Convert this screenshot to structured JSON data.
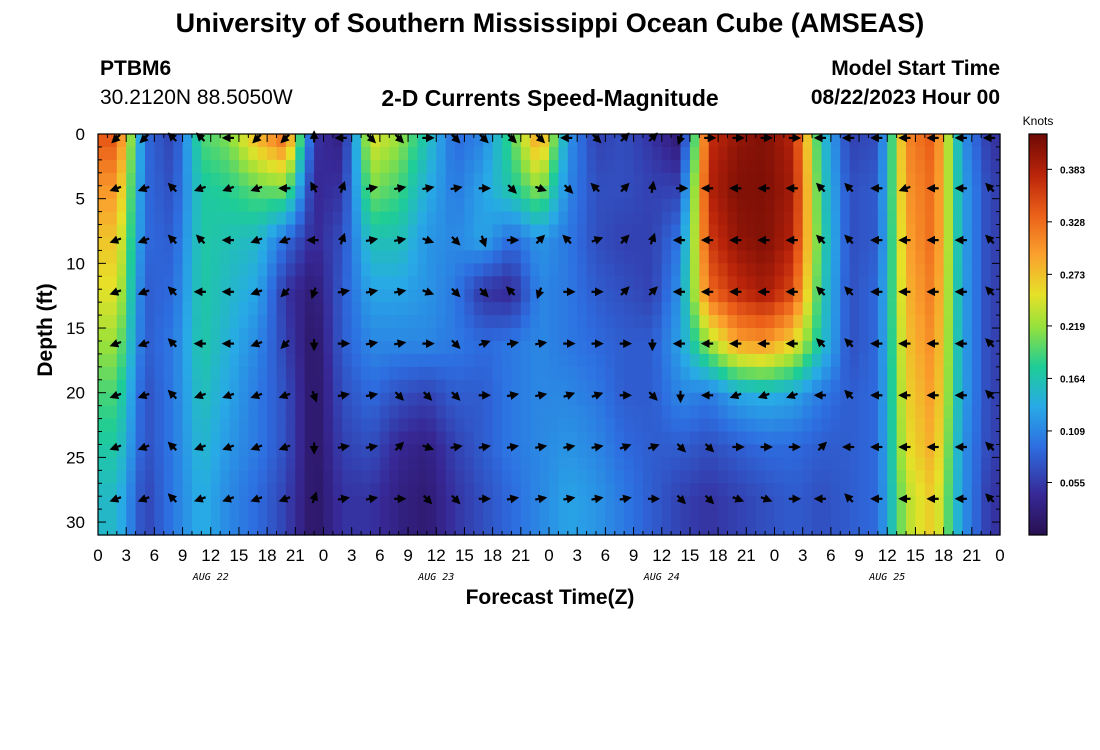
{
  "header": {
    "title": "University of Southern Mississippi Ocean Cube (AMSEAS)",
    "station": "PTBM6",
    "coordinates": "30.2120N  88.5050W",
    "subtitle": "2-D Currents Speed-Magnitude",
    "model_start_label": "Model Start Time",
    "model_start_value": "08/22/2023 Hour 00"
  },
  "footer": {
    "title": "University of Southern Mississippi Ocean Cube (AMSEAS)"
  },
  "chart_data": {
    "type": "heatmap",
    "title": "2-D Currents Speed-Magnitude",
    "xlabel": "Forecast Time(Z)",
    "ylabel": "Depth (ft)",
    "x_unit": "hours since 08/22/2023 00Z",
    "xlim": [
      0,
      96
    ],
    "ylim": [
      31,
      0
    ],
    "x_tick_values": [
      0,
      3,
      6,
      9,
      12,
      15,
      18,
      21,
      24,
      27,
      30,
      33,
      36,
      39,
      42,
      45,
      48,
      51,
      54,
      57,
      60,
      63,
      66,
      69,
      72,
      75,
      78,
      81,
      84,
      87,
      90,
      93,
      96
    ],
    "x_tick_labels": [
      "0",
      "3",
      "6",
      "9",
      "12",
      "15",
      "18",
      "21",
      "0",
      "3",
      "6",
      "9",
      "12",
      "15",
      "18",
      "21",
      "0",
      "3",
      "6",
      "9",
      "12",
      "15",
      "18",
      "21",
      "0",
      "3",
      "6",
      "9",
      "12",
      "15",
      "18",
      "21",
      "0"
    ],
    "y_tick_values": [
      0,
      5,
      10,
      15,
      20,
      25,
      30
    ],
    "y_tick_labels": [
      "0",
      "5",
      "10",
      "15",
      "20",
      "25",
      "30"
    ],
    "date_labels": [
      {
        "label": "AUG 22",
        "hour": 12
      },
      {
        "label": "AUG 23",
        "hour": 36
      },
      {
        "label": "AUG 24",
        "hour": 60
      },
      {
        "label": "AUG 25",
        "hour": 84
      }
    ],
    "colorbar": {
      "label": "Knots",
      "min": 0.0,
      "max": 0.42,
      "tick_values": [
        0.055,
        0.109,
        0.164,
        0.219,
        0.273,
        0.328,
        0.383
      ],
      "tick_labels": [
        "0.055",
        "0.109",
        "0.164",
        "0.219",
        "0.273",
        "0.328",
        "0.383"
      ]
    },
    "vector_times": [
      2,
      5,
      8,
      11,
      14,
      17,
      20,
      23,
      26,
      29,
      32,
      35,
      38,
      41,
      44,
      47,
      50,
      53,
      56,
      59,
      62,
      65,
      68,
      71,
      74,
      77,
      80,
      83,
      86,
      89,
      92,
      95
    ],
    "vector_depths": [
      0.3,
      4.2,
      8.2,
      12.2,
      16.2,
      20.2,
      24.2,
      28.2
    ],
    "speed_grid_note": "Estimated speed (knots) per vector cell; rows = depth levels, columns = vector times",
    "speed": [
      [
        0.34,
        0.09,
        0.06,
        0.19,
        0.21,
        0.28,
        0.33,
        0.05,
        0.03,
        0.25,
        0.22,
        0.16,
        0.09,
        0.11,
        0.19,
        0.3,
        0.12,
        0.06,
        0.07,
        0.05,
        0.02,
        0.37,
        0.4,
        0.41,
        0.38,
        0.16,
        0.06,
        0.07,
        0.31,
        0.34,
        0.12,
        0.05
      ],
      [
        0.3,
        0.09,
        0.07,
        0.17,
        0.18,
        0.2,
        0.21,
        0.04,
        0.05,
        0.21,
        0.19,
        0.14,
        0.1,
        0.13,
        0.17,
        0.22,
        0.11,
        0.07,
        0.07,
        0.06,
        0.06,
        0.38,
        0.41,
        0.41,
        0.39,
        0.17,
        0.07,
        0.08,
        0.3,
        0.33,
        0.13,
        0.06
      ],
      [
        0.27,
        0.09,
        0.08,
        0.17,
        0.16,
        0.15,
        0.09,
        0.04,
        0.07,
        0.16,
        0.16,
        0.12,
        0.11,
        0.13,
        0.09,
        0.12,
        0.1,
        0.07,
        0.06,
        0.06,
        0.1,
        0.36,
        0.4,
        0.41,
        0.38,
        0.18,
        0.07,
        0.08,
        0.29,
        0.33,
        0.13,
        0.06
      ],
      [
        0.25,
        0.08,
        0.09,
        0.17,
        0.15,
        0.13,
        0.05,
        0.02,
        0.08,
        0.13,
        0.13,
        0.12,
        0.1,
        0.05,
        0.04,
        0.11,
        0.1,
        0.08,
        0.07,
        0.06,
        0.12,
        0.33,
        0.37,
        0.39,
        0.35,
        0.17,
        0.07,
        0.09,
        0.28,
        0.32,
        0.13,
        0.06
      ],
      [
        0.22,
        0.08,
        0.1,
        0.17,
        0.14,
        0.11,
        0.06,
        0.01,
        0.08,
        0.11,
        0.11,
        0.11,
        0.1,
        0.09,
        0.1,
        0.11,
        0.1,
        0.09,
        0.08,
        0.08,
        0.13,
        0.22,
        0.29,
        0.3,
        0.26,
        0.16,
        0.07,
        0.09,
        0.27,
        0.31,
        0.13,
        0.06
      ],
      [
        0.19,
        0.07,
        0.1,
        0.16,
        0.13,
        0.1,
        0.07,
        0.01,
        0.07,
        0.09,
        0.07,
        0.06,
        0.08,
        0.08,
        0.1,
        0.11,
        0.11,
        0.1,
        0.08,
        0.08,
        0.11,
        0.1,
        0.13,
        0.14,
        0.13,
        0.1,
        0.08,
        0.09,
        0.26,
        0.3,
        0.13,
        0.06
      ],
      [
        0.17,
        0.07,
        0.1,
        0.15,
        0.12,
        0.1,
        0.07,
        0.01,
        0.06,
        0.07,
        0.04,
        0.03,
        0.06,
        0.08,
        0.1,
        0.11,
        0.12,
        0.11,
        0.09,
        0.08,
        0.08,
        0.07,
        0.08,
        0.09,
        0.09,
        0.08,
        0.08,
        0.09,
        0.25,
        0.29,
        0.12,
        0.06
      ],
      [
        0.15,
        0.06,
        0.1,
        0.14,
        0.11,
        0.09,
        0.06,
        0.01,
        0.05,
        0.05,
        0.03,
        0.02,
        0.05,
        0.07,
        0.09,
        0.11,
        0.13,
        0.12,
        0.1,
        0.08,
        0.06,
        0.05,
        0.06,
        0.07,
        0.08,
        0.07,
        0.08,
        0.09,
        0.23,
        0.27,
        0.12,
        0.05
      ]
    ],
    "direction_deg_note": "Arrow pointing direction in compass degrees (0 = up/north, 90 = right/east)",
    "direction_deg": [
      [
        225,
        225,
        315,
        315,
        270,
        225,
        225,
        0,
        270,
        135,
        135,
        90,
        135,
        135,
        135,
        135,
        270,
        135,
        45,
        45,
        200,
        90,
        90,
        90,
        90,
        270,
        270,
        270,
        270,
        270,
        270,
        270
      ],
      [
        250,
        250,
        315,
        250,
        250,
        250,
        270,
        330,
        20,
        80,
        80,
        80,
        80,
        90,
        135,
        110,
        135,
        315,
        45,
        10,
        90,
        270,
        270,
        270,
        270,
        315,
        315,
        270,
        250,
        270,
        270,
        315
      ],
      [
        250,
        250,
        315,
        315,
        270,
        250,
        250,
        270,
        20,
        80,
        80,
        110,
        135,
        160,
        90,
        45,
        315,
        70,
        45,
        20,
        270,
        270,
        270,
        270,
        270,
        315,
        315,
        270,
        270,
        270,
        270,
        315
      ],
      [
        250,
        250,
        315,
        270,
        270,
        250,
        225,
        200,
        80,
        80,
        80,
        110,
        135,
        135,
        315,
        200,
        90,
        90,
        45,
        45,
        270,
        270,
        270,
        270,
        270,
        315,
        315,
        270,
        270,
        270,
        270,
        315
      ],
      [
        250,
        250,
        315,
        270,
        270,
        250,
        225,
        180,
        90,
        80,
        80,
        90,
        135,
        70,
        80,
        80,
        90,
        90,
        90,
        180,
        270,
        270,
        270,
        270,
        270,
        315,
        315,
        270,
        270,
        270,
        270,
        315
      ],
      [
        250,
        250,
        315,
        250,
        250,
        250,
        250,
        160,
        80,
        80,
        135,
        135,
        135,
        90,
        80,
        80,
        70,
        70,
        90,
        135,
        180,
        270,
        250,
        250,
        250,
        270,
        315,
        270,
        270,
        270,
        270,
        315
      ],
      [
        250,
        250,
        315,
        250,
        250,
        250,
        250,
        180,
        80,
        80,
        45,
        110,
        80,
        80,
        80,
        80,
        80,
        80,
        70,
        70,
        135,
        135,
        90,
        90,
        90,
        45,
        270,
        270,
        270,
        270,
        270,
        315
      ],
      [
        250,
        250,
        315,
        250,
        250,
        250,
        250,
        20,
        80,
        80,
        90,
        135,
        135,
        90,
        80,
        80,
        80,
        80,
        80,
        90,
        135,
        135,
        110,
        110,
        90,
        270,
        315,
        270,
        270,
        270,
        270,
        315
      ]
    ]
  }
}
